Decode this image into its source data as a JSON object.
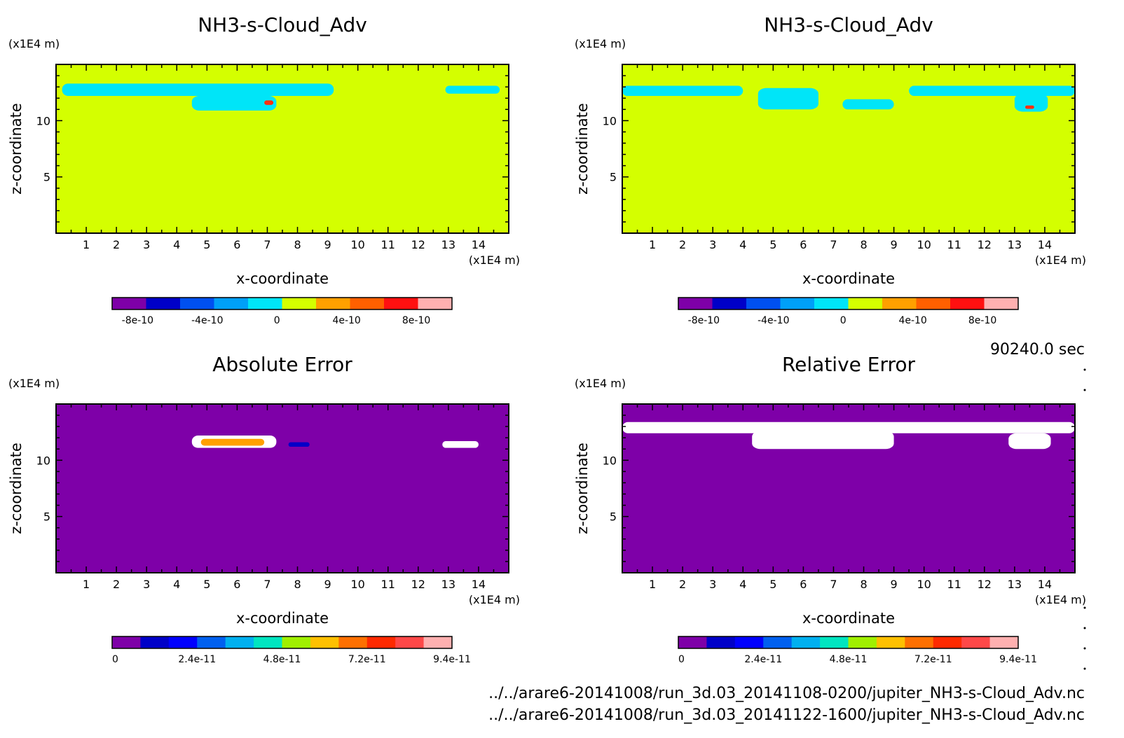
{
  "time_label": "90240.0 sec",
  "file_paths": [
    "../../arare6-20141008/run_3d.03_20141108-0200/jupiter_NH3-s-Cloud_Adv.nc",
    "../../arare6-20141008/run_3d.03_20141122-1600/jupiter_NH3-s-Cloud_Adv.nc"
  ],
  "colors": {
    "background_yellow_green": "#d4ff00",
    "cyan_anomaly": "#00e5f8",
    "purple_background": "#7e00a8",
    "white_region": "#ffffff"
  },
  "chart_data": [
    {
      "id": "panel-top-left",
      "type": "heatmap",
      "title": "NH3-s-Cloud_Adv",
      "xlabel": "x-coordinate",
      "ylabel": "z-coordinate",
      "x_unit": "(x1E4 m)",
      "y_unit": "(x1E4 m)",
      "xlim": [
        0,
        15
      ],
      "ylim": [
        0,
        15
      ],
      "x_ticks": [
        "1",
        "2",
        "3",
        "4",
        "5",
        "6",
        "7",
        "8",
        "9",
        "10",
        "11",
        "12",
        "13",
        "14"
      ],
      "y_ticks": [
        "5",
        "10"
      ],
      "background_color": "#d4ff00",
      "features": [
        {
          "x": [
            0.2,
            9.2
          ],
          "z": [
            12.2,
            13.3
          ],
          "color": "#00e5f8",
          "label": "near-zero band"
        },
        {
          "x": [
            4.5,
            7.3
          ],
          "z": [
            10.9,
            12.2
          ],
          "color": "#00e5f8",
          "label": "near-zero lobe"
        },
        {
          "x": [
            12.9,
            14.7
          ],
          "z": [
            12.4,
            13.1
          ],
          "color": "#00e5f8",
          "label": "near-zero patch"
        },
        {
          "x": [
            6.9,
            7.2
          ],
          "z": [
            11.4,
            11.8
          ],
          "color": "#ff3010",
          "label": "positive spot"
        }
      ],
      "colorbar": {
        "colors": [
          "#7e00a8",
          "#0000c8",
          "#0050f0",
          "#00a0f8",
          "#00e5f8",
          "#d4ff00",
          "#ffa000",
          "#ff6000",
          "#ff1010",
          "#ffb0b0"
        ],
        "labels": [
          "-8e-10",
          "-4e-10",
          "0",
          "4e-10",
          "8e-10"
        ]
      }
    },
    {
      "id": "panel-top-right",
      "type": "heatmap",
      "title": "NH3-s-Cloud_Adv",
      "xlabel": "x-coordinate",
      "ylabel": "z-coordinate",
      "x_unit": "(x1E4 m)",
      "y_unit": "(x1E4 m)",
      "xlim": [
        0,
        15
      ],
      "ylim": [
        0,
        15
      ],
      "x_ticks": [
        "1",
        "2",
        "3",
        "4",
        "5",
        "6",
        "7",
        "8",
        "9",
        "10",
        "11",
        "12",
        "13",
        "14"
      ],
      "y_ticks": [
        "5",
        "10"
      ],
      "background_color": "#d4ff00",
      "features": [
        {
          "x": [
            0,
            4.0
          ],
          "z": [
            12.2,
            13.1
          ],
          "color": "#00e5f8",
          "label": "near-zero band"
        },
        {
          "x": [
            4.5,
            6.5
          ],
          "z": [
            11.0,
            12.9
          ],
          "color": "#00e5f8",
          "label": "near-zero patches"
        },
        {
          "x": [
            7.3,
            9.0
          ],
          "z": [
            11.0,
            11.9
          ],
          "color": "#00e5f8",
          "label": "near-zero patch"
        },
        {
          "x": [
            9.5,
            15.0
          ],
          "z": [
            12.2,
            13.1
          ],
          "color": "#00e5f8",
          "label": "near-zero band"
        },
        {
          "x": [
            13.0,
            14.1
          ],
          "z": [
            10.8,
            12.4
          ],
          "color": "#00e5f8",
          "label": "near-zero lobe"
        },
        {
          "x": [
            13.35,
            13.65
          ],
          "z": [
            11.05,
            11.35
          ],
          "color": "#ff3010",
          "label": "positive spot"
        }
      ],
      "colorbar": {
        "colors": [
          "#7e00a8",
          "#0000c8",
          "#0050f0",
          "#00a0f8",
          "#00e5f8",
          "#d4ff00",
          "#ffa000",
          "#ff6000",
          "#ff1010",
          "#ffb0b0"
        ],
        "labels": [
          "-8e-10",
          "-4e-10",
          "0",
          "4e-10",
          "8e-10"
        ]
      }
    },
    {
      "id": "panel-bottom-left",
      "type": "heatmap",
      "title": "Absolute Error",
      "xlabel": "x-coordinate",
      "ylabel": "z-coordinate",
      "x_unit": "(x1E4 m)",
      "y_unit": "(x1E4 m)",
      "xlim": [
        0,
        15
      ],
      "ylim": [
        0,
        15
      ],
      "x_ticks": [
        "1",
        "2",
        "3",
        "4",
        "5",
        "6",
        "7",
        "8",
        "9",
        "10",
        "11",
        "12",
        "13",
        "14"
      ],
      "y_ticks": [
        "5",
        "10"
      ],
      "background_color": "#7e00a8",
      "features": [
        {
          "x": [
            4.5,
            7.3
          ],
          "z": [
            11.1,
            12.2
          ],
          "color": "#ffffff",
          "label": "error streak"
        },
        {
          "x": [
            4.8,
            6.9
          ],
          "z": [
            11.3,
            11.9
          ],
          "color": "#ffa000",
          "label": "error core"
        },
        {
          "x": [
            7.7,
            8.4
          ],
          "z": [
            11.2,
            11.6
          ],
          "color": "#0000c8",
          "label": "small error blob"
        },
        {
          "x": [
            12.8,
            14.0
          ],
          "z": [
            11.1,
            11.7
          ],
          "color": "#ffffff",
          "label": "error streak"
        }
      ],
      "colorbar": {
        "colors": [
          "#7e00a8",
          "#0000c8",
          "#0000ff",
          "#0060f0",
          "#00b0f0",
          "#00e5c0",
          "#a0f000",
          "#ffc000",
          "#ff7000",
          "#ff2a00",
          "#ff4848",
          "#ffb0b0"
        ],
        "labels": [
          "0",
          "2.4e-11",
          "4.8e-11",
          "7.2e-11",
          "9.4e-11"
        ]
      }
    },
    {
      "id": "panel-bottom-right",
      "type": "heatmap",
      "title": "Relative Error",
      "xlabel": "x-coordinate",
      "ylabel": "z-coordinate",
      "x_unit": "(x1E4 m)",
      "y_unit": "(x1E4 m)",
      "xlim": [
        0,
        15
      ],
      "ylim": [
        0,
        15
      ],
      "x_ticks": [
        "1",
        "2",
        "3",
        "4",
        "5",
        "6",
        "7",
        "8",
        "9",
        "10",
        "11",
        "12",
        "13",
        "14"
      ],
      "y_ticks": [
        "5",
        "10"
      ],
      "background_color": "#7e00a8",
      "features": [
        {
          "x": [
            0,
            15.0
          ],
          "z": [
            12.4,
            13.4
          ],
          "color": "#ffffff",
          "label": "undefined band"
        },
        {
          "x": [
            4.3,
            9.0
          ],
          "z": [
            11.0,
            12.6
          ],
          "color": "#ffffff",
          "label": "undefined region"
        },
        {
          "x": [
            12.8,
            14.2
          ],
          "z": [
            11.0,
            12.4
          ],
          "color": "#ffffff",
          "label": "undefined region"
        }
      ],
      "colorbar": {
        "colors": [
          "#7e00a8",
          "#0000c8",
          "#0000ff",
          "#0060f0",
          "#00b0f0",
          "#00e5c0",
          "#a0f000",
          "#ffc000",
          "#ff7000",
          "#ff2a00",
          "#ff4848",
          "#ffb0b0"
        ],
        "labels": [
          "0",
          "2.4e-11",
          "4.8e-11",
          "7.2e-11",
          "9.4e-11"
        ]
      }
    }
  ]
}
